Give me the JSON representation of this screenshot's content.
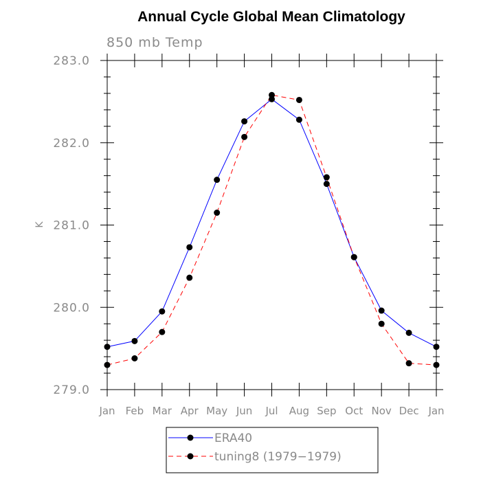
{
  "chart_data": {
    "type": "line",
    "title": "Annual Cycle Global Mean Climatology",
    "subtitle": "850 mb Temp",
    "ylabel": "K",
    "xlabel": "",
    "categories": [
      "Jan",
      "Feb",
      "Mar",
      "Apr",
      "May",
      "Jun",
      "Jul",
      "Aug",
      "Sep",
      "Oct",
      "Nov",
      "Dec",
      "Jan"
    ],
    "ylim": [
      279.0,
      283.0
    ],
    "yticks": [
      279.0,
      280.0,
      281.0,
      282.0,
      283.0
    ],
    "ytick_labels": [
      "279.0",
      "280.0",
      "281.0",
      "282.0",
      "283.0"
    ],
    "grid": false,
    "legend_position": "bottom",
    "series": [
      {
        "name": "ERA40",
        "color": "#0000ff",
        "line_style": "solid",
        "values": [
          279.52,
          279.59,
          279.95,
          280.73,
          281.55,
          282.26,
          282.53,
          282.28,
          281.5,
          280.61,
          279.96,
          279.69,
          279.52
        ]
      },
      {
        "name": "tuning8 (1979−1979)",
        "color": "#ff0000",
        "line_style": "dashed",
        "values": [
          279.3,
          279.38,
          279.7,
          280.36,
          281.15,
          282.07,
          282.58,
          282.52,
          281.58,
          280.61,
          279.8,
          279.32,
          279.3
        ]
      }
    ]
  }
}
